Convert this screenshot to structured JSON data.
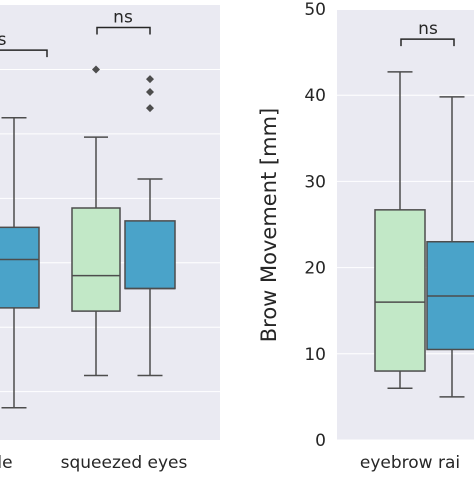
{
  "chart_data": [
    {
      "type": "box",
      "title": "",
      "xlabel": "",
      "ylabel": "",
      "ylim": [
        -0.5,
        13.0
      ],
      "gridlines_y": [
        1,
        3,
        5,
        7,
        9,
        11
      ],
      "grid": true,
      "categories": [
        "le",
        "squeezed eyes"
      ],
      "colors": [
        "#c2e8c7",
        "#4aa3c9"
      ],
      "boxes": [
        {
          "category": "le",
          "color_index": 1,
          "whisker_low": 0.5,
          "q1": 3.6,
          "median": 5.1,
          "q3": 6.1,
          "whisker_high": 9.5,
          "outliers": []
        },
        {
          "category": "squeezed eyes",
          "color_index": 0,
          "whisker_low": 1.5,
          "q1": 3.5,
          "median": 4.6,
          "q3": 6.7,
          "whisker_high": 8.9,
          "outliers": [
            11.0
          ]
        },
        {
          "category": "squeezed eyes",
          "color_index": 1,
          "whisker_low": 1.5,
          "q1": 4.2,
          "median": 4.2,
          "q3": 6.3,
          "whisker_high": 7.6,
          "outliers": [
            9.8,
            10.3,
            10.7
          ]
        }
      ],
      "annotations": [
        {
          "label": "s",
          "category": "le",
          "level": 11.6
        },
        {
          "label": "ns",
          "category": "squeezed eyes",
          "level": 12.3
        }
      ]
    },
    {
      "type": "box",
      "title": "",
      "xlabel": "",
      "ylabel": "Brow Movement [mm]",
      "ylim": [
        0,
        50
      ],
      "yticks": [
        "0",
        "10",
        "20",
        "30",
        "40",
        "50"
      ],
      "grid": true,
      "categories": [
        "eyebrow rai"
      ],
      "colors": [
        "#c2e8c7",
        "#4aa3c9"
      ],
      "boxes": [
        {
          "category": "eyebrow rai",
          "color_index": 0,
          "whisker_low": 6,
          "q1": 8,
          "median": 16,
          "q3": 26.7,
          "whisker_high": 42.7,
          "outliers": []
        },
        {
          "category": "eyebrow rai",
          "color_index": 1,
          "whisker_low": 5,
          "q1": 10.5,
          "median": 16.7,
          "q3": 23,
          "whisker_high": 39.8,
          "outliers": []
        }
      ],
      "annotations": [
        {
          "label": "ns",
          "category": "eyebrow rai",
          "level": 46.5
        }
      ]
    }
  ]
}
